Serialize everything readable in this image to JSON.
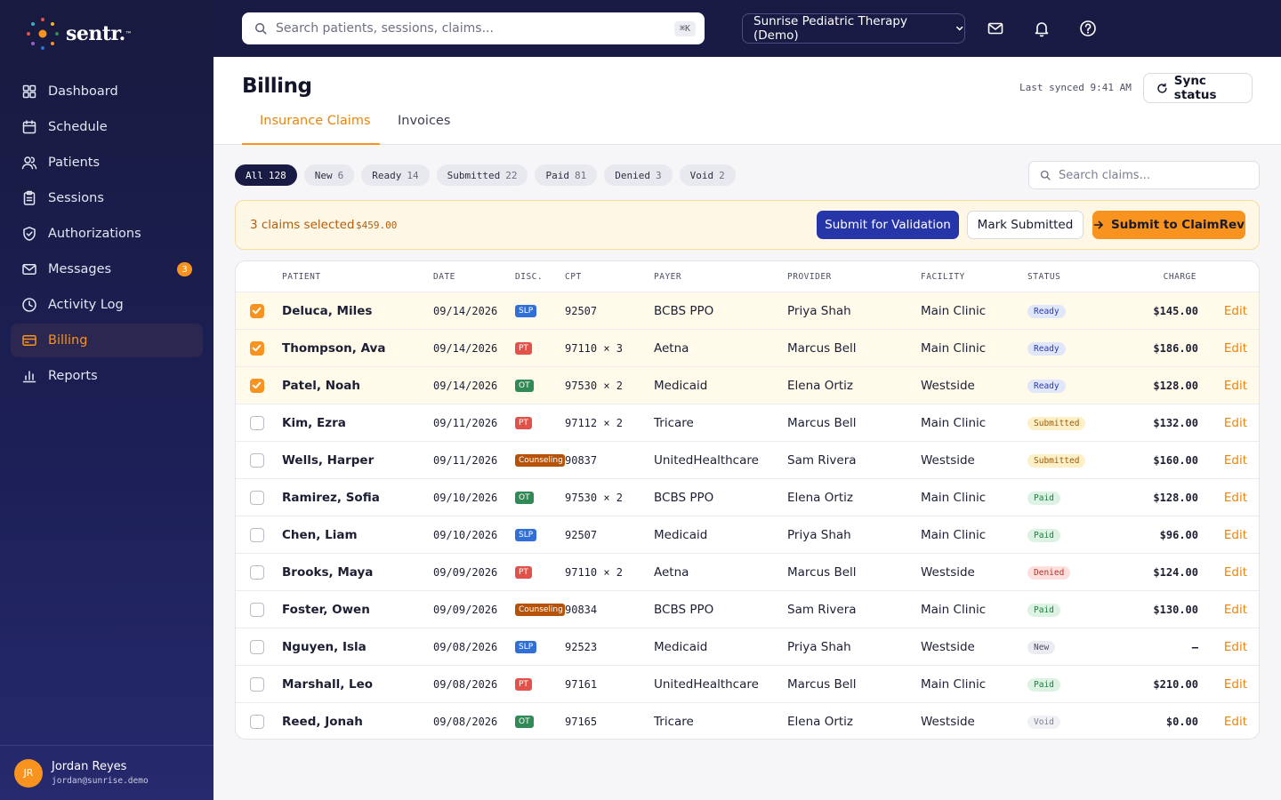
{
  "brand": {
    "name": "sentr.",
    "tm": "™"
  },
  "nav": [
    {
      "label": "Dashboard",
      "icon": "dashboard-icon",
      "active": false
    },
    {
      "label": "Schedule",
      "icon": "calendar-icon",
      "active": false
    },
    {
      "label": "Patients",
      "icon": "users-icon",
      "active": false
    },
    {
      "label": "Sessions",
      "icon": "clipboard-icon",
      "active": false
    },
    {
      "label": "Authorizations",
      "icon": "shield-icon",
      "active": false
    },
    {
      "label": "Messages",
      "icon": "mail-icon",
      "active": false,
      "badge": "3"
    },
    {
      "label": "Activity Log",
      "icon": "clock-icon",
      "active": false
    },
    {
      "label": "Billing",
      "icon": "credit-card-icon",
      "active": true
    },
    {
      "label": "Reports",
      "icon": "bar-chart-icon",
      "active": false
    }
  ],
  "user": {
    "initials": "JR",
    "name": "Jordan Reyes",
    "email": "jordan@sunrise.demo"
  },
  "topbar": {
    "search_placeholder": "Search patients, sessions, claims...",
    "shortcut": "⌘K",
    "org": "Sunrise Pediatric Therapy (Demo)"
  },
  "page": {
    "title": "Billing",
    "last_synced": "Last synced 9:41 AM",
    "sync_label": "Sync status",
    "tabs": [
      {
        "label": "Insurance Claims",
        "active": true
      },
      {
        "label": "Invoices",
        "active": false
      }
    ]
  },
  "filters": [
    {
      "label": "All",
      "count": "128",
      "active": true
    },
    {
      "label": "New",
      "count": "6",
      "active": false
    },
    {
      "label": "Ready",
      "count": "14",
      "active": false
    },
    {
      "label": "Submitted",
      "count": "22",
      "active": false
    },
    {
      "label": "Paid",
      "count": "81",
      "active": false
    },
    {
      "label": "Denied",
      "count": "3",
      "active": false
    },
    {
      "label": "Void",
      "count": "2",
      "active": false
    }
  ],
  "claim_search_placeholder": "Search claims...",
  "selection": {
    "count_label": "3 claims selected",
    "amount": "$459.00",
    "validate_label": "Submit for Validation",
    "mark_label": "Mark Submitted",
    "claimrev_label": "Submit to ClaimRev"
  },
  "table": {
    "headers": {
      "patient": "PATIENT",
      "date": "DATE",
      "disc": "DISC.",
      "cpt": "CPT",
      "payer": "PAYER",
      "provider": "PROVIDER",
      "facility": "FACILITY",
      "status": "STATUS",
      "charge": "CHARGE"
    },
    "edit_label": "Edit",
    "rows": [
      {
        "selected": true,
        "patient": "Deluca, Miles",
        "date": "09/14/2026",
        "disc": "SLP",
        "cpt": "92507",
        "payer": "BCBS PPO",
        "provider": "Priya Shah",
        "facility": "Main Clinic",
        "status": "Ready",
        "charge": "$145.00"
      },
      {
        "selected": true,
        "patient": "Thompson, Ava",
        "date": "09/14/2026",
        "disc": "PT",
        "cpt": "97110 × 3",
        "payer": "Aetna",
        "provider": "Marcus Bell",
        "facility": "Main Clinic",
        "status": "Ready",
        "charge": "$186.00"
      },
      {
        "selected": true,
        "patient": "Patel, Noah",
        "date": "09/14/2026",
        "disc": "OT",
        "cpt": "97530 × 2",
        "payer": "Medicaid",
        "provider": "Elena Ortiz",
        "facility": "Westside",
        "status": "Ready",
        "charge": "$128.00"
      },
      {
        "selected": false,
        "patient": "Kim, Ezra",
        "date": "09/11/2026",
        "disc": "PT",
        "cpt": "97112 × 2",
        "payer": "Tricare",
        "provider": "Marcus Bell",
        "facility": "Main Clinic",
        "status": "Submitted",
        "charge": "$132.00"
      },
      {
        "selected": false,
        "patient": "Wells, Harper",
        "date": "09/11/2026",
        "disc": "Counseling",
        "cpt": "90837",
        "payer": "UnitedHealthcare",
        "provider": "Sam Rivera",
        "facility": "Westside",
        "status": "Submitted",
        "charge": "$160.00"
      },
      {
        "selected": false,
        "patient": "Ramirez, Sofia",
        "date": "09/10/2026",
        "disc": "OT",
        "cpt": "97530 × 2",
        "payer": "BCBS PPO",
        "provider": "Elena Ortiz",
        "facility": "Main Clinic",
        "status": "Paid",
        "charge": "$128.00"
      },
      {
        "selected": false,
        "patient": "Chen, Liam",
        "date": "09/10/2026",
        "disc": "SLP",
        "cpt": "92507",
        "payer": "Medicaid",
        "provider": "Priya Shah",
        "facility": "Main Clinic",
        "status": "Paid",
        "charge": "$96.00"
      },
      {
        "selected": false,
        "patient": "Brooks, Maya",
        "date": "09/09/2026",
        "disc": "PT",
        "cpt": "97110 × 2",
        "payer": "Aetna",
        "provider": "Marcus Bell",
        "facility": "Westside",
        "status": "Denied",
        "charge": "$124.00"
      },
      {
        "selected": false,
        "patient": "Foster, Owen",
        "date": "09/09/2026",
        "disc": "Counseling",
        "cpt": "90834",
        "payer": "BCBS PPO",
        "provider": "Sam Rivera",
        "facility": "Main Clinic",
        "status": "Paid",
        "charge": "$130.00"
      },
      {
        "selected": false,
        "patient": "Nguyen, Isla",
        "date": "09/08/2026",
        "disc": "SLP",
        "cpt": "92523",
        "payer": "Medicaid",
        "provider": "Priya Shah",
        "facility": "Westside",
        "status": "New",
        "charge": "—"
      },
      {
        "selected": false,
        "patient": "Marshall, Leo",
        "date": "09/08/2026",
        "disc": "PT",
        "cpt": "97161",
        "payer": "UnitedHealthcare",
        "provider": "Marcus Bell",
        "facility": "Main Clinic",
        "status": "Paid",
        "charge": "$210.00"
      },
      {
        "selected": false,
        "patient": "Reed, Jonah",
        "date": "09/08/2026",
        "disc": "OT",
        "cpt": "97165",
        "payer": "Tricare",
        "provider": "Elena Ortiz",
        "facility": "Westside",
        "status": "Void",
        "charge": "$0.00"
      }
    ]
  },
  "colors": {
    "accent": "#f7931e",
    "sidebar": "#1c1f55",
    "primary_button": "#2635a8",
    "disc_SLP": "#2f6fd6",
    "disc_PT": "#e0524a",
    "disc_OT": "#2f8a55",
    "disc_Counseling": "#b5530a"
  }
}
